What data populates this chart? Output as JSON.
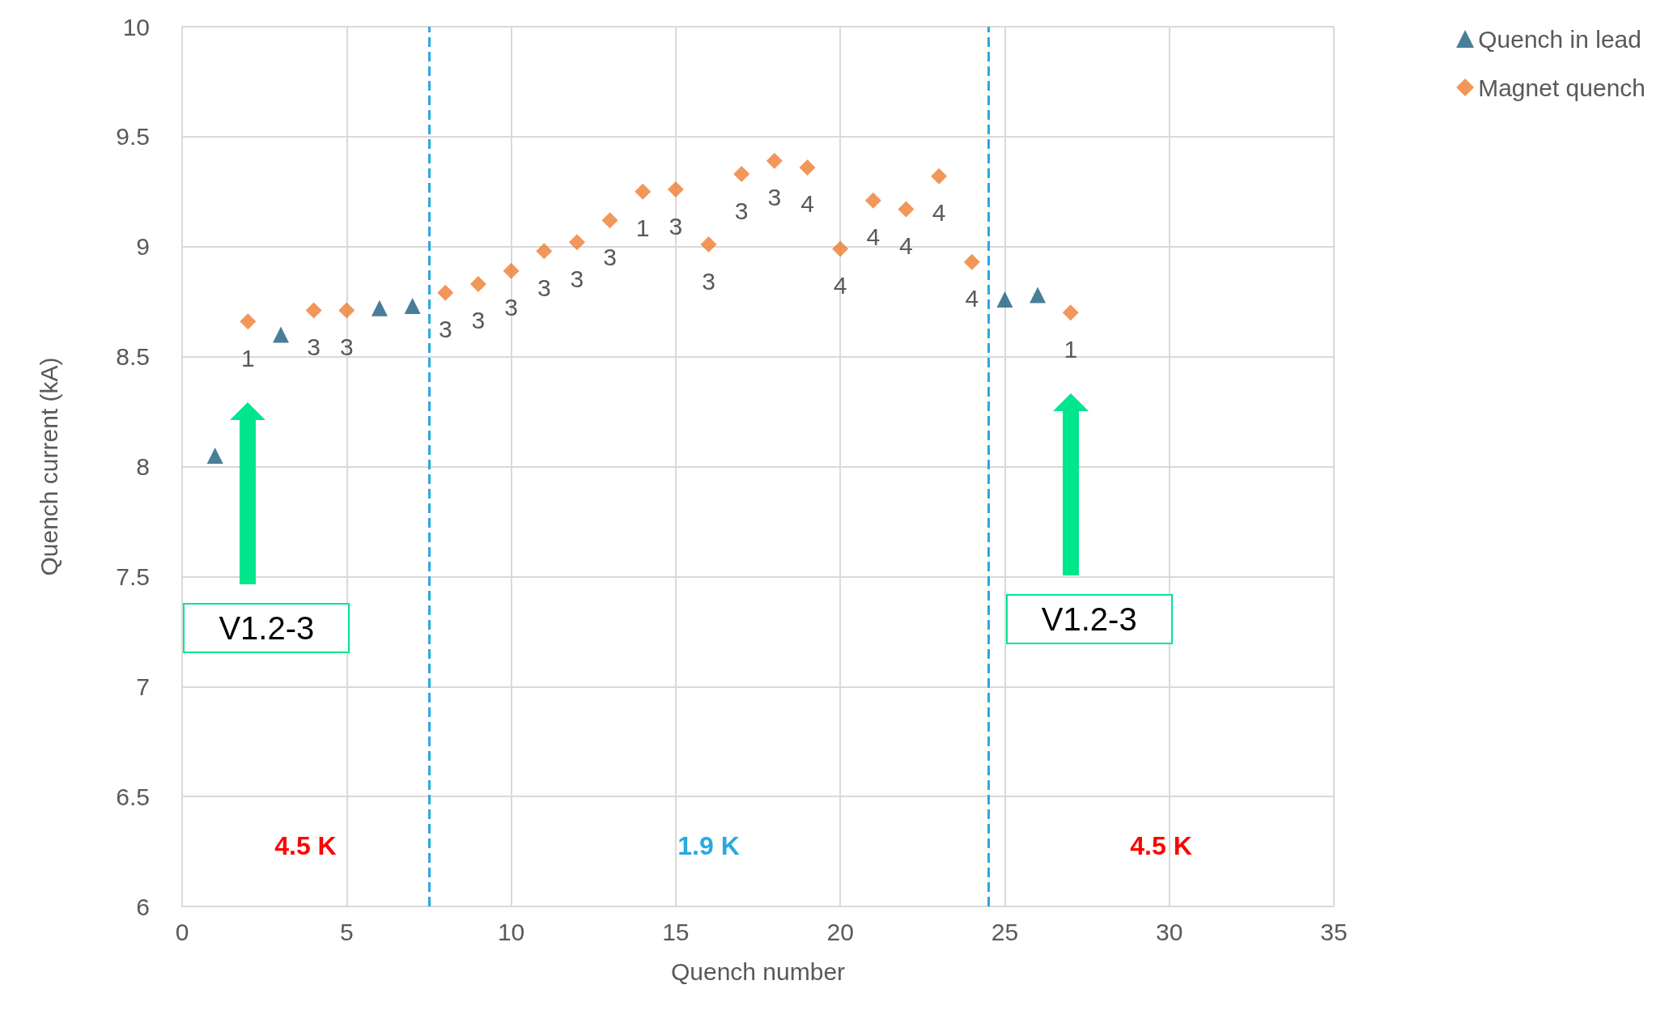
{
  "chart_data": {
    "type": "scatter",
    "xlabel": "Quench number",
    "ylabel": "Quench current (kA)",
    "xlim": [
      0,
      35
    ],
    "xticks": [
      0,
      5,
      10,
      15,
      20,
      25,
      30,
      35
    ],
    "ylim": [
      6,
      10
    ],
    "yticks": [
      6,
      6.5,
      7,
      7.5,
      8,
      8.5,
      9,
      9.5,
      10
    ],
    "grid": true,
    "legend": "top right",
    "series": [
      {
        "name": "Quench in lead",
        "color": "#1b5e7e",
        "marker": "triangle",
        "x": [
          1,
          3,
          6,
          7,
          25,
          26
        ],
        "values": [
          8.05,
          8.6,
          8.72,
          8.73,
          8.76,
          8.78
        ]
      },
      {
        "name": "Magnet quench",
        "color": "#ed7d31",
        "marker": "diamond",
        "x": [
          2,
          4,
          5,
          8,
          9,
          10,
          11,
          12,
          13,
          14,
          15,
          16,
          17,
          18,
          19,
          20,
          21,
          22,
          23,
          24,
          27
        ],
        "values": [
          8.66,
          8.71,
          8.71,
          8.79,
          8.83,
          8.89,
          8.98,
          9.02,
          9.12,
          9.25,
          9.26,
          9.01,
          9.33,
          9.39,
          9.36,
          8.99,
          9.21,
          9.17,
          9.32,
          8.93,
          8.7
        ]
      }
    ],
    "ref_lines": [
      {
        "axis": "x",
        "value": 7.5,
        "color": "#29a9e0",
        "line_style": "dashed"
      },
      {
        "axis": "x",
        "value": 24.5,
        "color": "#29a9e0",
        "line_style": "dashed"
      }
    ],
    "annotations": [
      {
        "text": "1",
        "x": 2,
        "y": 8.66
      },
      {
        "text": "3",
        "x": 4,
        "y": 8.71
      },
      {
        "text": "3",
        "x": 5,
        "y": 8.71
      },
      {
        "text": "3",
        "x": 8,
        "y": 8.79
      },
      {
        "text": "3",
        "x": 9,
        "y": 8.83
      },
      {
        "text": "3",
        "x": 10,
        "y": 8.89
      },
      {
        "text": "3",
        "x": 11,
        "y": 8.98
      },
      {
        "text": "3",
        "x": 12,
        "y": 9.02
      },
      {
        "text": "3",
        "x": 13,
        "y": 9.12
      },
      {
        "text": "1",
        "x": 14,
        "y": 9.25
      },
      {
        "text": "3",
        "x": 15,
        "y": 9.26
      },
      {
        "text": "3",
        "x": 16,
        "y": 9.01
      },
      {
        "text": "3",
        "x": 17,
        "y": 9.33
      },
      {
        "text": "3",
        "x": 18,
        "y": 9.39
      },
      {
        "text": "4",
        "x": 19,
        "y": 9.36
      },
      {
        "text": "4",
        "x": 20,
        "y": 8.99
      },
      {
        "text": "4",
        "x": 21,
        "y": 9.21
      },
      {
        "text": "4",
        "x": 22,
        "y": 9.17
      },
      {
        "text": "4",
        "x": 23,
        "y": 9.32
      },
      {
        "text": "4",
        "x": 24,
        "y": 8.93
      },
      {
        "text": "1",
        "x": 27,
        "y": 8.7
      },
      "V1.2-3",
      "V1.2-3",
      "4.5 K",
      "1.9 K",
      "4.5 K"
    ]
  }
}
